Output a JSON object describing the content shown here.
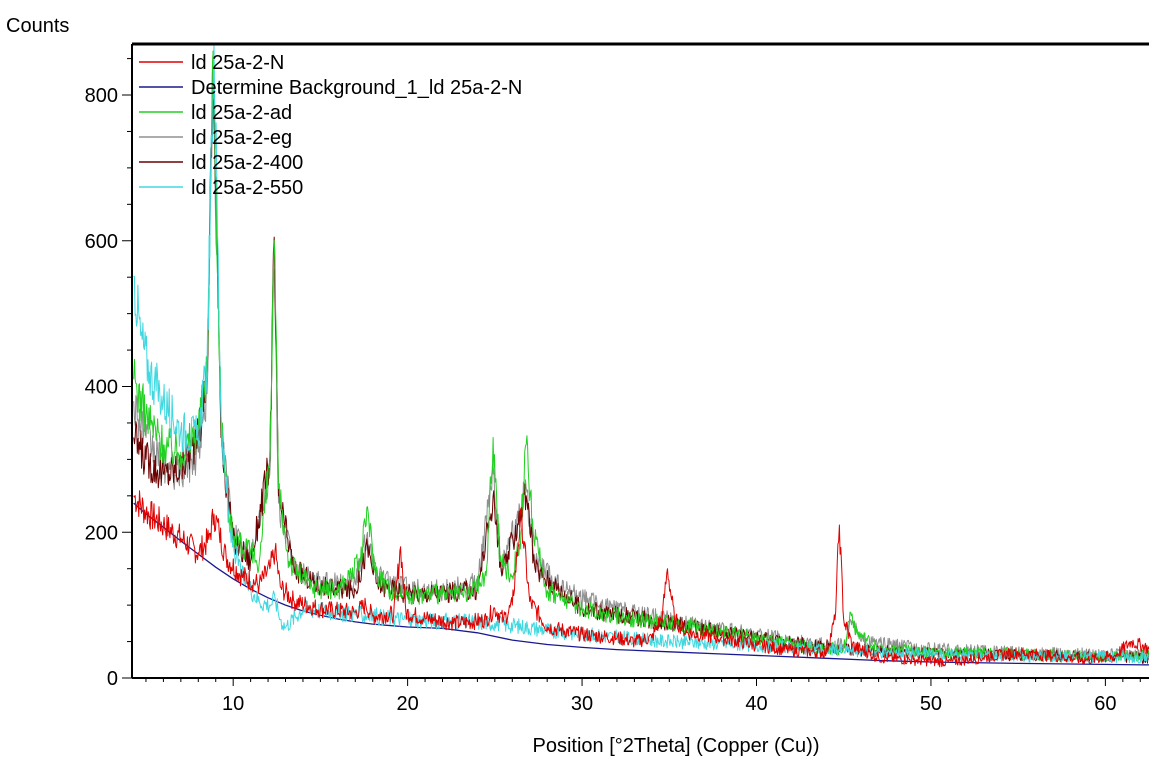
{
  "chart_data": {
    "type": "line",
    "title": "",
    "ylabel": "Counts",
    "xlabel": "Position [°2Theta] (Copper (Cu))",
    "xlim": [
      4.2,
      62.5
    ],
    "ylim": [
      0,
      870
    ],
    "x_ticks": [
      10,
      20,
      30,
      40,
      50,
      60
    ],
    "y_ticks": [
      0,
      200,
      400,
      600,
      800
    ],
    "grid": false,
    "legend_position": "top-left",
    "series": [
      {
        "name": "ld 25a-2-N",
        "color": "#e00000",
        "points": [
          [
            4.3,
            250
          ],
          [
            5,
            228
          ],
          [
            6,
            210
          ],
          [
            7,
            192
          ],
          [
            8,
            172
          ],
          [
            8.6,
            190
          ],
          [
            8.9,
            225
          ],
          [
            9.2,
            200
          ],
          [
            9.6,
            165
          ],
          [
            10.5,
            140
          ],
          [
            11.5,
            128
          ],
          [
            12.1,
            150
          ],
          [
            12.4,
            175
          ],
          [
            12.7,
            125
          ],
          [
            13.5,
            105
          ],
          [
            15,
            95
          ],
          [
            17,
            90
          ],
          [
            17.6,
            100
          ],
          [
            18,
            85
          ],
          [
            19.2,
            88
          ],
          [
            19.6,
            180
          ],
          [
            19.9,
            90
          ],
          [
            21,
            82
          ],
          [
            23,
            75
          ],
          [
            24.5,
            80
          ],
          [
            25,
            95
          ],
          [
            25.5,
            80
          ],
          [
            26,
            100
          ],
          [
            26.5,
            225
          ],
          [
            27,
            105
          ],
          [
            28,
            70
          ],
          [
            30,
            60
          ],
          [
            32,
            55
          ],
          [
            33,
            50
          ],
          [
            34,
            55
          ],
          [
            34.6,
            85
          ],
          [
            34.9,
            150
          ],
          [
            35.3,
            80
          ],
          [
            36,
            62
          ],
          [
            38,
            55
          ],
          [
            40,
            45
          ],
          [
            42,
            38
          ],
          [
            44,
            35
          ],
          [
            44.5,
            80
          ],
          [
            44.75,
            210
          ],
          [
            45,
            80
          ],
          [
            45.5,
            45
          ],
          [
            47,
            28
          ],
          [
            49,
            25
          ],
          [
            51,
            22
          ],
          [
            53,
            28
          ],
          [
            55,
            35
          ],
          [
            57,
            30
          ],
          [
            59,
            25
          ],
          [
            60.5,
            30
          ],
          [
            61.5,
            50
          ],
          [
            62.5,
            40
          ]
        ]
      },
      {
        "name": "Determine Background_1_ld 25a-2-N",
        "color": "#1a1a90",
        "points": [
          [
            4.3,
            240
          ],
          [
            5,
            225
          ],
          [
            6,
            207
          ],
          [
            7,
            188
          ],
          [
            8,
            170
          ],
          [
            9,
            152
          ],
          [
            10,
            136
          ],
          [
            11,
            122
          ],
          [
            12,
            110
          ],
          [
            13,
            100
          ],
          [
            14,
            92
          ],
          [
            15,
            86
          ],
          [
            16,
            81
          ],
          [
            17,
            77
          ],
          [
            18,
            74
          ],
          [
            20,
            70
          ],
          [
            22,
            68
          ],
          [
            24,
            62
          ],
          [
            26,
            52
          ],
          [
            28,
            46
          ],
          [
            30,
            42
          ],
          [
            32,
            39
          ],
          [
            35,
            36
          ],
          [
            38,
            33
          ],
          [
            41,
            30
          ],
          [
            44,
            27
          ],
          [
            47,
            24
          ],
          [
            50,
            22
          ],
          [
            55,
            20
          ],
          [
            62.5,
            18
          ]
        ]
      },
      {
        "name": "ld 25a-2-ad",
        "color": "#22d022",
        "points": [
          [
            4.3,
            410
          ],
          [
            5,
            360
          ],
          [
            6,
            320
          ],
          [
            7,
            310
          ],
          [
            8,
            340
          ],
          [
            8.5,
            420
          ],
          [
            8.85,
            860
          ],
          [
            9.3,
            360
          ],
          [
            9.8,
            210
          ],
          [
            10.5,
            180
          ],
          [
            11.5,
            160
          ],
          [
            12.1,
            300
          ],
          [
            12.35,
            600
          ],
          [
            12.6,
            260
          ],
          [
            13.2,
            160
          ],
          [
            14.5,
            125
          ],
          [
            16,
            120
          ],
          [
            17.3,
            160
          ],
          [
            17.7,
            235
          ],
          [
            18.1,
            150
          ],
          [
            19,
            120
          ],
          [
            20,
            115
          ],
          [
            22,
            115
          ],
          [
            23.5,
            115
          ],
          [
            24.5,
            140
          ],
          [
            24.9,
            330
          ],
          [
            25.3,
            160
          ],
          [
            26,
            140
          ],
          [
            26.5,
            200
          ],
          [
            26.8,
            320
          ],
          [
            27.2,
            200
          ],
          [
            28,
            120
          ],
          [
            30,
            95
          ],
          [
            33,
            80
          ],
          [
            35,
            75
          ],
          [
            38,
            65
          ],
          [
            40,
            55
          ],
          [
            43,
            42
          ],
          [
            45,
            40
          ],
          [
            45.4,
            90
          ],
          [
            45.8,
            60
          ],
          [
            47,
            40
          ],
          [
            50,
            35
          ],
          [
            55,
            33
          ],
          [
            60,
            30
          ],
          [
            62.5,
            30
          ]
        ]
      },
      {
        "name": "ld 25a-2-eg",
        "color": "#909090",
        "points": [
          [
            4.3,
            380
          ],
          [
            5,
            330
          ],
          [
            6,
            290
          ],
          [
            7,
            280
          ],
          [
            8,
            310
          ],
          [
            8.5,
            390
          ],
          [
            8.85,
            820
          ],
          [
            9.3,
            340
          ],
          [
            10,
            200
          ],
          [
            11,
            165
          ],
          [
            12.1,
            280
          ],
          [
            12.35,
            560
          ],
          [
            12.6,
            240
          ],
          [
            13.5,
            150
          ],
          [
            15,
            130
          ],
          [
            17,
            130
          ],
          [
            17.7,
            200
          ],
          [
            18.2,
            140
          ],
          [
            20,
            125
          ],
          [
            22,
            120
          ],
          [
            24,
            130
          ],
          [
            24.9,
            280
          ],
          [
            25.4,
            150
          ],
          [
            26.8,
            260
          ],
          [
            27.3,
            160
          ],
          [
            29,
            120
          ],
          [
            31,
            100
          ],
          [
            34,
            85
          ],
          [
            37,
            70
          ],
          [
            40,
            60
          ],
          [
            43,
            48
          ],
          [
            45,
            45
          ],
          [
            45.4,
            80
          ],
          [
            46,
            50
          ],
          [
            50,
            40
          ],
          [
            55,
            35
          ],
          [
            62.5,
            32
          ]
        ]
      },
      {
        "name": "ld 25a-2-400",
        "color": "#6b0000",
        "points": [
          [
            4.3,
            330
          ],
          [
            5,
            300
          ],
          [
            6,
            280
          ],
          [
            7,
            290
          ],
          [
            8,
            330
          ],
          [
            8.5,
            420
          ],
          [
            8.85,
            860
          ],
          [
            9.3,
            330
          ],
          [
            10,
            190
          ],
          [
            11,
            160
          ],
          [
            12.1,
            300
          ],
          [
            12.35,
            605
          ],
          [
            12.6,
            250
          ],
          [
            13.5,
            150
          ],
          [
            15,
            125
          ],
          [
            17,
            120
          ],
          [
            17.7,
            180
          ],
          [
            18.2,
            130
          ],
          [
            20,
            115
          ],
          [
            24,
            120
          ],
          [
            24.9,
            250
          ],
          [
            25.4,
            140
          ],
          [
            26.8,
            250
          ],
          [
            27.3,
            150
          ],
          [
            30,
            95
          ],
          [
            35,
            75
          ],
          [
            40,
            55
          ],
          [
            45,
            40
          ],
          [
            50,
            33
          ],
          [
            62.5,
            28
          ]
        ]
      },
      {
        "name": "ld 25a-2-550",
        "color": "#40d8e0",
        "points": [
          [
            4.3,
            550
          ],
          [
            4.7,
            470
          ],
          [
            5.2,
            420
          ],
          [
            6,
            380
          ],
          [
            7,
            340
          ],
          [
            8,
            330
          ],
          [
            8.5,
            430
          ],
          [
            8.9,
            870
          ],
          [
            9.3,
            360
          ],
          [
            9.8,
            200
          ],
          [
            10.5,
            140
          ],
          [
            11.5,
            105
          ],
          [
            12.1,
            100
          ],
          [
            12.4,
            110
          ],
          [
            12.7,
            80
          ],
          [
            13,
            70
          ],
          [
            14,
            95
          ],
          [
            16,
            90
          ],
          [
            18,
            85
          ],
          [
            20,
            80
          ],
          [
            25,
            75
          ],
          [
            30,
            60
          ],
          [
            35,
            50
          ],
          [
            40,
            45
          ],
          [
            45,
            38
          ],
          [
            50,
            32
          ],
          [
            55,
            30
          ],
          [
            62.5,
            28
          ]
        ]
      }
    ]
  }
}
